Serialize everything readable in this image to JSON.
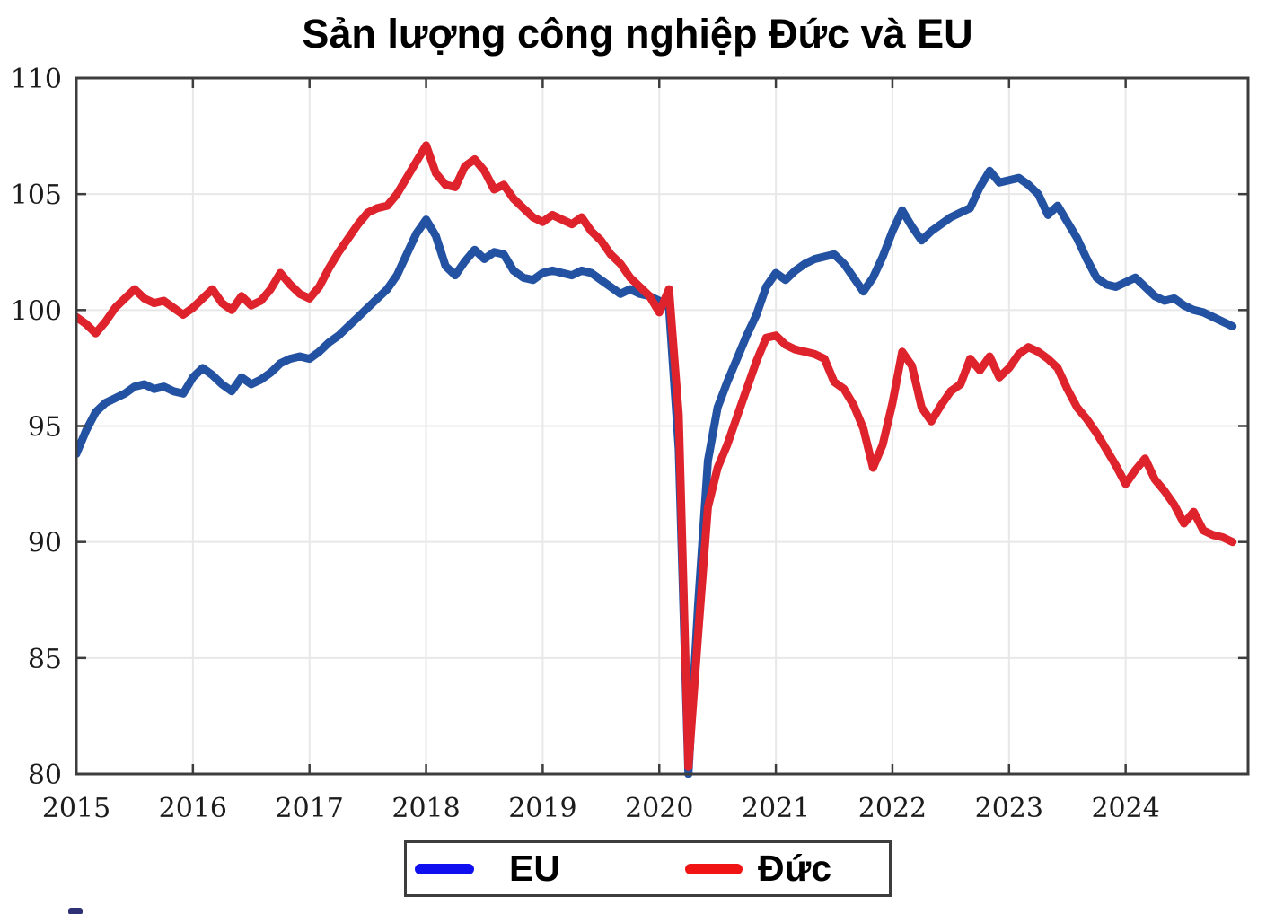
{
  "title": "Sản lượng công nghiệp Đức và EU",
  "colors": {
    "eu_line": "#2452a2",
    "de_line": "#de232c",
    "eu_legend_swatch": "#0f0fef",
    "de_legend_swatch": "#f01414",
    "grid": "#e8e8e8",
    "axis": "#3d3d3d",
    "tick_label": "#1c1c1c"
  },
  "legend": {
    "items": [
      {
        "label": "EU",
        "color": "#0f0fef"
      },
      {
        "label": "Đức",
        "color": "#f01414"
      }
    ]
  },
  "chart_data": {
    "type": "line",
    "title": "Sản lượng công nghiệp Đức và EU",
    "xlabel": "",
    "ylabel": "",
    "x_unit": "monthly, Jan 2015 – Dec 2024",
    "xlim": [
      2015,
      2025.05
    ],
    "ylim": [
      80,
      110
    ],
    "x_ticks": [
      2015,
      2016,
      2017,
      2018,
      2019,
      2020,
      2021,
      2022,
      2023,
      2024
    ],
    "y_ticks": [
      80,
      85,
      90,
      95,
      100,
      105,
      110
    ],
    "grid": true,
    "legend_position": "bottom",
    "series": [
      {
        "name": "EU",
        "color": "#2452a2",
        "values": [
          93.8,
          94.8,
          95.6,
          96.0,
          96.2,
          96.4,
          96.7,
          96.8,
          96.6,
          96.7,
          96.5,
          96.4,
          97.1,
          97.5,
          97.2,
          96.8,
          96.5,
          97.1,
          96.8,
          97.0,
          97.3,
          97.7,
          97.9,
          98.0,
          97.9,
          98.2,
          98.6,
          98.9,
          99.3,
          99.7,
          100.1,
          100.5,
          100.9,
          101.5,
          102.4,
          103.3,
          103.9,
          103.2,
          101.9,
          101.5,
          102.1,
          102.6,
          102.2,
          102.5,
          102.4,
          101.7,
          101.4,
          101.3,
          101.6,
          101.7,
          101.6,
          101.5,
          101.7,
          101.6,
          101.3,
          101.0,
          100.7,
          100.9,
          100.7,
          100.6,
          100.4,
          100.1,
          94.0,
          80.0,
          87.3,
          93.5,
          95.8,
          96.9,
          97.9,
          98.9,
          99.8,
          101.0,
          101.6,
          101.3,
          101.7,
          102.0,
          102.2,
          102.3,
          102.4,
          102.0,
          101.4,
          100.8,
          101.4,
          102.3,
          103.4,
          104.3,
          103.6,
          103.0,
          103.4,
          103.7,
          104.0,
          104.2,
          104.4,
          105.3,
          106.0,
          105.5,
          105.6,
          105.7,
          105.4,
          105.0,
          104.1,
          104.5,
          103.8,
          103.1,
          102.2,
          101.4,
          101.1,
          101.0,
          101.2,
          101.4,
          101.0,
          100.6,
          100.4,
          100.5,
          100.2,
          100.0,
          99.9,
          99.7,
          99.5,
          99.3
        ]
      },
      {
        "name": "Đức",
        "color": "#de232c",
        "values": [
          99.7,
          99.4,
          99.0,
          99.5,
          100.1,
          100.5,
          100.9,
          100.5,
          100.3,
          100.4,
          100.1,
          99.8,
          100.1,
          100.5,
          100.9,
          100.3,
          100.0,
          100.6,
          100.2,
          100.4,
          100.9,
          101.6,
          101.1,
          100.7,
          100.5,
          101.0,
          101.8,
          102.5,
          103.1,
          103.7,
          104.2,
          104.4,
          104.5,
          105.0,
          105.7,
          106.4,
          107.1,
          105.9,
          105.4,
          105.3,
          106.2,
          106.5,
          106.0,
          105.2,
          105.4,
          104.8,
          104.4,
          104.0,
          103.8,
          104.1,
          103.9,
          103.7,
          104.0,
          103.4,
          103.0,
          102.4,
          102.0,
          101.4,
          101.0,
          100.6,
          99.9,
          100.9,
          95.5,
          80.3,
          86.0,
          91.5,
          93.2,
          94.2,
          95.4,
          96.6,
          97.8,
          98.8,
          98.9,
          98.5,
          98.3,
          98.2,
          98.1,
          97.9,
          96.9,
          96.6,
          95.9,
          94.9,
          93.2,
          94.2,
          96.0,
          98.2,
          97.6,
          95.8,
          95.2,
          95.9,
          96.5,
          96.8,
          97.9,
          97.4,
          98.0,
          97.1,
          97.5,
          98.1,
          98.4,
          98.2,
          97.9,
          97.5,
          96.6,
          95.8,
          95.3,
          94.7,
          94.0,
          93.3,
          92.5,
          93.1,
          93.6,
          92.7,
          92.2,
          91.6,
          90.8,
          91.3,
          90.5,
          90.3,
          90.2,
          90.0
        ]
      }
    ]
  }
}
